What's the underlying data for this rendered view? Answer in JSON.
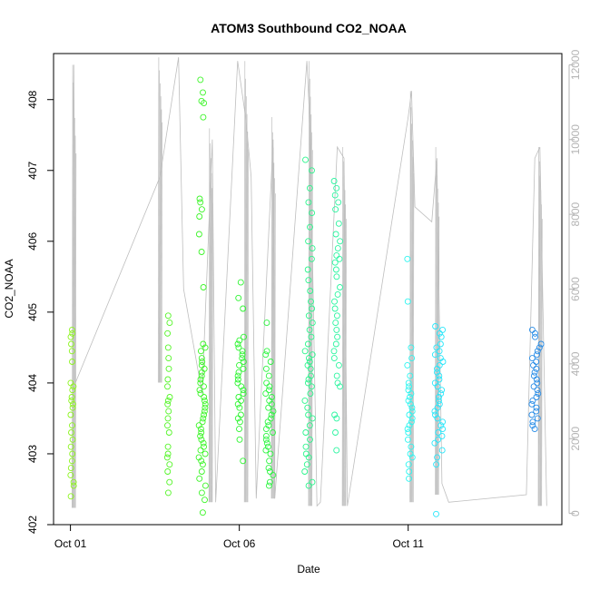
{
  "chart_data": {
    "type": "scatter",
    "title": "ATOM3 Southbound CO2_NOAA",
    "xlabel": "Date",
    "ylabel": "CO2_NOAA",
    "x_ticks": [
      {
        "label": "Oct 01",
        "value": 1
      },
      {
        "label": "Oct 06",
        "value": 6
      },
      {
        "label": "Oct 11",
        "value": 11
      }
    ],
    "xlim": [
      0.5,
      15.55
    ],
    "ylim": [
      402.0,
      408.65
    ],
    "y_ticks": [
      "402",
      "403",
      "404",
      "405",
      "406",
      "407",
      "408"
    ],
    "y2lim": [
      -300,
      12300
    ],
    "y2_ticks": [
      "0",
      "2000",
      "4000",
      "6000",
      "8000",
      "10000",
      "12000"
    ],
    "grid": false,
    "legend": "none",
    "colors": {
      "altitude_line": "#bebebe",
      "right_axis": "#b4b4b4",
      "frame": "#000000"
    },
    "series": [
      {
        "x_center": 1.05,
        "x_spread": 0.05,
        "color": "#8cf51e",
        "points": [
          404.75,
          404.7,
          404.65,
          404.55,
          404.45,
          404.3,
          404.0,
          403.95,
          403.9,
          403.8,
          403.75,
          403.7,
          403.65,
          403.55,
          403.4,
          403.3,
          403.2,
          403.1,
          403.0,
          402.9,
          402.8,
          402.7,
          402.6,
          402.55,
          402.4
        ]
      },
      {
        "x_center": 3.9,
        "x_spread": 0.04,
        "color": "#55f528",
        "points": [
          404.95,
          404.85,
          404.7,
          404.5,
          404.35,
          404.2,
          404.05,
          403.95,
          403.8,
          403.75,
          403.7,
          403.6,
          403.5,
          403.4,
          403.3,
          403.1,
          403.0,
          402.95,
          402.85,
          402.75,
          402.6,
          402.45
        ]
      },
      {
        "x_center": 4.9,
        "x_spread": 0.1,
        "color": "#3cf528",
        "points": [
          408.28,
          408.1,
          407.98,
          407.95,
          407.75,
          406.6,
          406.55,
          406.45,
          406.35,
          406.1,
          405.85,
          405.35,
          404.55,
          404.5,
          404.45,
          404.35,
          404.3,
          404.25,
          404.2,
          404.15,
          404.1,
          404.05,
          404.0,
          403.95,
          403.9,
          403.85,
          403.8,
          403.75,
          403.7,
          403.65,
          403.6,
          403.55,
          403.5,
          403.45,
          403.4,
          403.35,
          403.3,
          403.25,
          403.2,
          403.15,
          403.1,
          403.05,
          403.0,
          402.95,
          402.9,
          402.85,
          402.75,
          402.65,
          402.55,
          402.45,
          402.35,
          402.17
        ]
      },
      {
        "x_center": 6.05,
        "x_spread": 0.1,
        "color": "#2ef532",
        "points": [
          405.42,
          405.2,
          405.05,
          404.65,
          404.6,
          404.55,
          404.5,
          404.45,
          404.4,
          404.35,
          404.3,
          404.25,
          404.2,
          404.15,
          404.1,
          404.05,
          404.0,
          403.95,
          403.9,
          403.85,
          403.8,
          403.75,
          403.7,
          403.65,
          403.55,
          403.5,
          403.45,
          403.35,
          403.2,
          402.9
        ]
      },
      {
        "x_center": 6.9,
        "x_spread": 0.12,
        "color": "#2ef542",
        "points": [
          404.85,
          404.45,
          404.4,
          404.3,
          404.2,
          404.1,
          404.0,
          403.95,
          403.9,
          403.85,
          403.8,
          403.75,
          403.7,
          403.65,
          403.6,
          403.55,
          403.5,
          403.45,
          403.4,
          403.35,
          403.3,
          403.25,
          403.2,
          403.15,
          403.1,
          403.05,
          403.0,
          402.9,
          402.8,
          402.75,
          402.7,
          402.6,
          402.55
        ]
      },
      {
        "x_center": 8.05,
        "x_spread": 0.12,
        "color": "#2bf58c",
        "points": [
          407.15,
          407.0,
          406.75,
          406.55,
          406.4,
          406.2,
          406.0,
          405.9,
          405.75,
          405.6,
          405.45,
          405.3,
          405.15,
          405.05,
          404.95,
          404.85,
          404.75,
          404.65,
          404.55,
          404.45,
          404.4,
          404.35,
          404.3,
          404.25,
          404.2,
          404.1,
          404.05,
          404.0,
          403.95,
          403.85,
          403.75,
          403.65,
          403.55,
          403.5,
          403.4,
          403.3,
          403.2,
          403.1,
          403.0,
          402.95,
          402.85,
          402.75,
          402.6,
          402.55
        ]
      },
      {
        "x_center": 8.9,
        "x_spread": 0.1,
        "color": "#2bf5a0",
        "points": [
          406.85,
          406.75,
          406.65,
          406.55,
          406.45,
          406.25,
          406.1,
          406.0,
          405.9,
          405.8,
          405.75,
          405.7,
          405.6,
          405.5,
          405.35,
          405.25,
          405.15,
          405.05,
          404.95,
          404.85,
          404.75,
          404.65,
          404.55,
          404.45,
          404.35,
          404.25,
          404.1,
          404.0,
          403.95,
          403.55,
          403.5,
          403.3,
          403.05
        ]
      },
      {
        "x_center": 11.05,
        "x_spread": 0.08,
        "color": "#2ef5f0",
        "points": [
          405.75,
          405.15,
          404.5,
          404.35,
          404.25,
          404.1,
          404.0,
          403.95,
          403.9,
          403.85,
          403.8,
          403.75,
          403.7,
          403.65,
          403.6,
          403.55,
          403.5,
          403.45,
          403.4,
          403.35,
          403.3,
          403.2,
          403.1,
          403.0,
          402.95,
          402.85,
          402.75,
          402.65
        ]
      },
      {
        "x_center": 11.9,
        "x_spread": 0.14,
        "color": "#28e6fa",
        "points": [
          404.8,
          404.75,
          404.7,
          404.65,
          404.55,
          404.5,
          404.45,
          404.4,
          404.35,
          404.3,
          404.25,
          404.2,
          404.15,
          404.1,
          404.05,
          404.0,
          403.95,
          403.9,
          403.85,
          403.8,
          403.75,
          403.7,
          403.65,
          403.6,
          403.55,
          403.5,
          403.45,
          403.4,
          403.35,
          403.3,
          403.25,
          403.2,
          403.15,
          403.05,
          402.95,
          402.85,
          402.15
        ]
      },
      {
        "x_center": 14.8,
        "x_spread": 0.14,
        "color": "#288ce6",
        "points": [
          404.75,
          404.7,
          404.65,
          404.55,
          404.5,
          404.45,
          404.4,
          404.35,
          404.3,
          404.25,
          404.2,
          404.15,
          404.1,
          404.05,
          404.0,
          403.95,
          403.9,
          403.85,
          403.8,
          403.75,
          403.7,
          403.65,
          403.6,
          403.55,
          403.5,
          403.45,
          403.4,
          403.35
        ]
      }
    ],
    "altitude_trace": {
      "points": [
        [
          1.05,
          150
        ],
        [
          1.1,
          12000
        ],
        [
          1.15,
          3500
        ],
        [
          3.65,
          9000
        ],
        [
          4.2,
          12200
        ],
        [
          4.35,
          6000
        ],
        [
          4.9,
          3200
        ],
        [
          5.2,
          10000
        ],
        [
          5.3,
          300
        ],
        [
          5.95,
          12100
        ],
        [
          6.2,
          10500
        ],
        [
          6.35,
          9000
        ],
        [
          6.5,
          400
        ],
        [
          7.0,
          10000
        ],
        [
          7.05,
          400
        ],
        [
          8.0,
          12100
        ],
        [
          8.1,
          10200
        ],
        [
          8.3,
          200
        ],
        [
          8.4,
          300
        ],
        [
          8.9,
          9800
        ],
        [
          9.1,
          9500
        ],
        [
          9.2,
          200
        ],
        [
          11.0,
          10600
        ],
        [
          11.1,
          11300
        ],
        [
          11.2,
          8200
        ],
        [
          11.7,
          7800
        ],
        [
          11.85,
          9500
        ],
        [
          12.0,
          800
        ],
        [
          12.2,
          300
        ],
        [
          14.5,
          500
        ],
        [
          14.75,
          9500
        ],
        [
          14.9,
          9800
        ],
        [
          15.1,
          200
        ]
      ],
      "bursts": [
        {
          "x": 1.1,
          "min": 150,
          "max": 12000
        },
        {
          "x": 3.65,
          "min": 3500,
          "max": 12200
        },
        {
          "x": 5.15,
          "min": 300,
          "max": 10300
        },
        {
          "x": 6.2,
          "min": 300,
          "max": 12100
        },
        {
          "x": 7.0,
          "min": 400,
          "max": 10600
        },
        {
          "x": 8.1,
          "min": 200,
          "max": 12100
        },
        {
          "x": 9.1,
          "min": 200,
          "max": 9800
        },
        {
          "x": 11.1,
          "min": 300,
          "max": 11300
        },
        {
          "x": 11.85,
          "min": 500,
          "max": 9800
        },
        {
          "x": 14.9,
          "min": 200,
          "max": 9800
        }
      ]
    }
  }
}
